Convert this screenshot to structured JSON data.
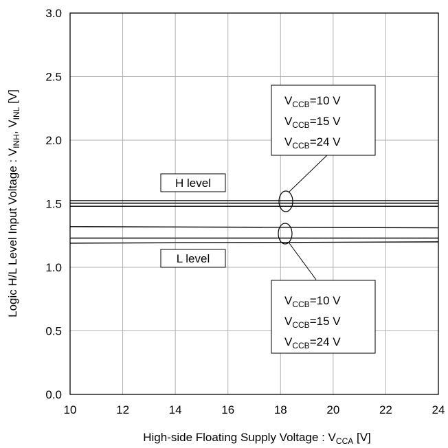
{
  "chart_data": {
    "type": "line",
    "xlabel": {
      "main": "High-side Floating Supply Voltage : V",
      "sub": "CCA",
      "unit": " [V]"
    },
    "ylabel": {
      "main": "Logic H/L Level Input Voltage : V",
      "sub1": "INH",
      "sep": ", V",
      "sub2": "INL",
      "unit": " [V]"
    },
    "xlim": [
      10,
      24
    ],
    "ylim": [
      0.0,
      3.0
    ],
    "xticks": [
      "10",
      "12",
      "14",
      "16",
      "18",
      "20",
      "22",
      "24"
    ],
    "yticks": [
      "0.0",
      "0.5",
      "1.0",
      "1.5",
      "2.0",
      "2.5",
      "3.0"
    ],
    "grid": true,
    "x": [
      10,
      24
    ],
    "series": [
      {
        "group": "H",
        "values": [
          1.525,
          1.525
        ]
      },
      {
        "group": "H",
        "values": [
          1.505,
          1.505
        ]
      },
      {
        "group": "H",
        "values": [
          1.48,
          1.48
        ]
      },
      {
        "group": "L",
        "values": [
          1.32,
          1.31
        ]
      },
      {
        "group": "L",
        "values": [
          1.23,
          1.23
        ]
      },
      {
        "group": "L",
        "values": [
          1.19,
          1.2
        ]
      }
    ],
    "level_labels": {
      "h": "H level",
      "l": "L level"
    },
    "annotations": {
      "h_group": [
        {
          "prefix": "V",
          "sub": "CCB",
          "value": "=10 V"
        },
        {
          "prefix": "V",
          "sub": "CCB",
          "value": "=15 V"
        },
        {
          "prefix": "V",
          "sub": "CCB",
          "value": "=24 V"
        }
      ],
      "l_group": [
        {
          "prefix": "V",
          "sub": "CCB",
          "value": "=10 V"
        },
        {
          "prefix": "V",
          "sub": "CCB",
          "value": "=15 V"
        },
        {
          "prefix": "V",
          "sub": "CCB",
          "value": "=24 V"
        }
      ]
    },
    "colors": {
      "line": "#000000",
      "grid": "#b0b0b0",
      "background": "#ffffff"
    }
  }
}
